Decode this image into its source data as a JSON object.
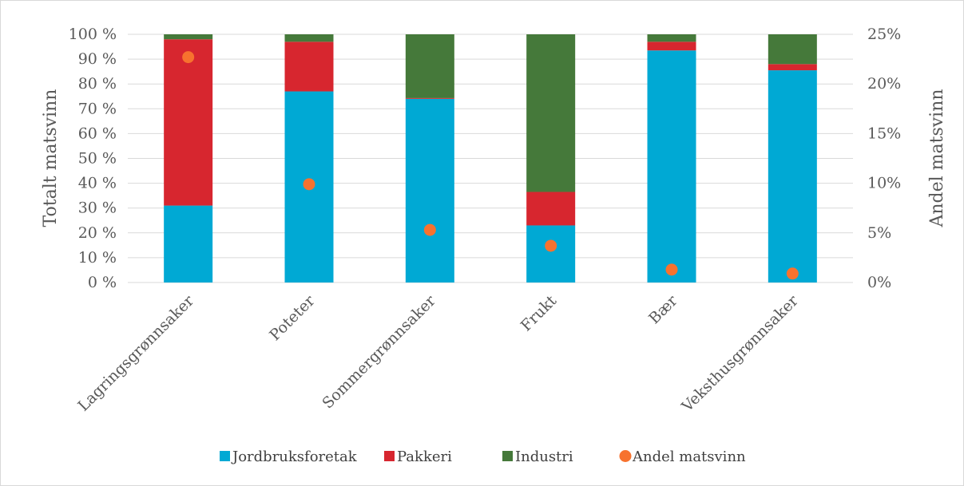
{
  "chart_data": {
    "type": "bar",
    "stacked": true,
    "categories": [
      "Lagringsgrønnsaker",
      "Poteter",
      "Sommergrønnsaker",
      "Frukt",
      "Bær",
      "Veksthusgrønnsaker"
    ],
    "series": [
      {
        "name": "Jordbruksforetak",
        "color": "#00a9d4",
        "axis": "left",
        "values": [
          31,
          77,
          74,
          23,
          93.5,
          85.5
        ]
      },
      {
        "name": "Pakkeri",
        "color": "#d7262f",
        "axis": "left",
        "values": [
          67,
          20,
          0.3,
          13.5,
          3.5,
          2.5
        ]
      },
      {
        "name": "Industri",
        "color": "#45793a",
        "axis": "left",
        "values": [
          2,
          3,
          25.7,
          63.5,
          3,
          12
        ]
      }
    ],
    "scatter_series": {
      "name": "Andel matsvinn",
      "color": "#f7722e",
      "axis": "right",
      "values": [
        22.7,
        9.9,
        5.3,
        3.7,
        1.3,
        0.9
      ]
    },
    "ylabel": "Totalt matsvinn",
    "y2label": "Andel matsvinn",
    "ylim": [
      0,
      100
    ],
    "y2lim": [
      0,
      25
    ],
    "yticks": [
      "0 %",
      "10 %",
      "20 %",
      "30 %",
      "40 %",
      "50 %",
      "60 %",
      "70 %",
      "80 %",
      "90 %",
      "100 %"
    ],
    "y2ticks": [
      "0%",
      "5%",
      "10%",
      "15%",
      "20%",
      "25%"
    ],
    "grid": true,
    "legend_position": "bottom",
    "legend": [
      "Jordbruksforetak",
      "Pakkeri",
      "Industri",
      "Andel matsvinn"
    ]
  }
}
